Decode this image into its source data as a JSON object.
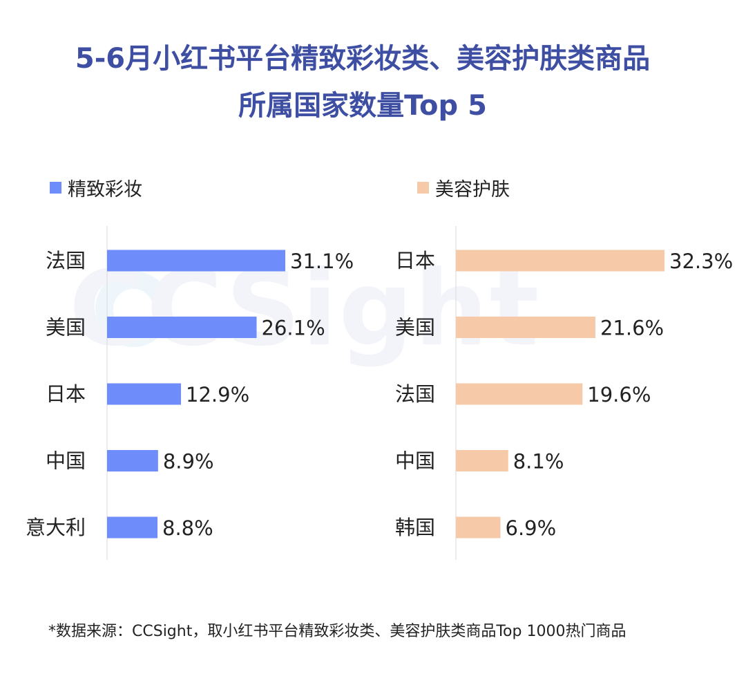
{
  "title": {
    "line1": "5-6月小红书平台精致彩妆类、美容护肤类商品",
    "line2": "所属国家数量Top 5"
  },
  "watermark": "CCSight",
  "colors": {
    "title": "#3d4ea3",
    "makeup": "#6e8dfb",
    "skincare": "#f6caa8"
  },
  "chart_data": [
    {
      "type": "bar",
      "orientation": "horizontal",
      "legend": "精致彩妆",
      "color": "#6e8dfb",
      "categories": [
        "法国",
        "美国",
        "日本",
        "中国",
        "意大利"
      ],
      "values": [
        31.1,
        26.1,
        12.9,
        8.9,
        8.8
      ],
      "labels": [
        "31.1%",
        "26.1%",
        "12.9%",
        "8.9%",
        "8.8%"
      ],
      "unit": "%"
    },
    {
      "type": "bar",
      "orientation": "horizontal",
      "legend": "美容护肤",
      "color": "#f6caa8",
      "categories": [
        "日本",
        "美国",
        "法国",
        "中国",
        "韩国"
      ],
      "values": [
        32.3,
        21.6,
        19.6,
        8.1,
        6.9
      ],
      "labels": [
        "32.3%",
        "21.6%",
        "19.6%",
        "8.1%",
        "6.9%"
      ],
      "unit": "%"
    }
  ],
  "footnote": "*数据来源：CCSight，取小红书平台精致彩妆类、美容护肤类商品Top 1000热门商品"
}
